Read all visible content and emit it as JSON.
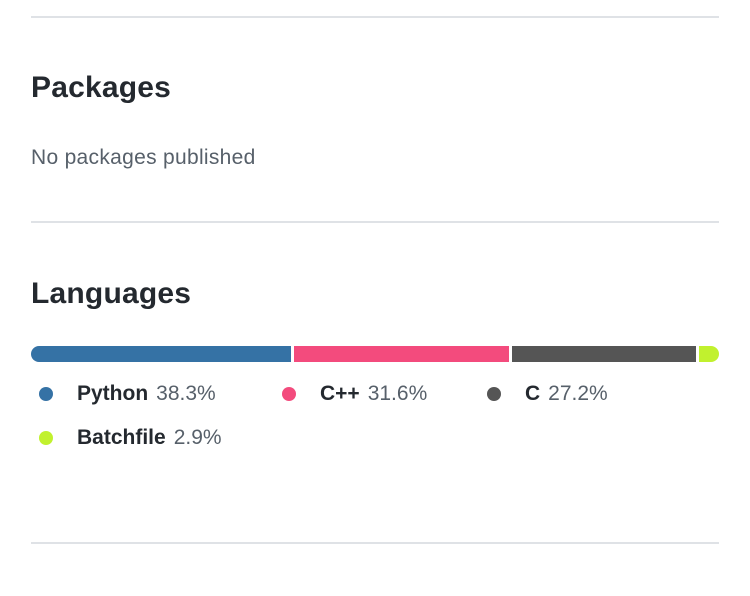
{
  "packages": {
    "title": "Packages",
    "empty_text": "No packages published"
  },
  "languages": {
    "title": "Languages",
    "items": [
      {
        "name": "Python",
        "percent_label": "38.3%",
        "percent": 38.3,
        "color": "#3572A5"
      },
      {
        "name": "C++",
        "percent_label": "31.6%",
        "percent": 31.6,
        "color": "#f34b7d"
      },
      {
        "name": "C",
        "percent_label": "27.2%",
        "percent": 27.2,
        "color": "#555555"
      },
      {
        "name": "Batchfile",
        "percent_label": "2.9%",
        "percent": 2.9,
        "color": "#C1F12E"
      }
    ]
  }
}
